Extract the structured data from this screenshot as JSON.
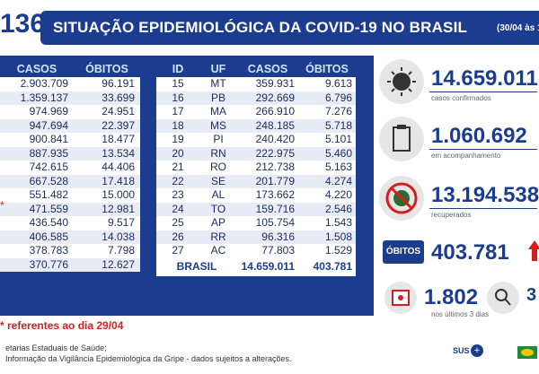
{
  "header": {
    "logo_number": "136",
    "title": "SITUAÇÃO EPIDEMIOLÓGICA DA COVID-19 NO BRASIL",
    "date": "(30/04 às 1"
  },
  "table_left": {
    "headers": {
      "casos": "CASOS",
      "obitos": "ÓBITOS"
    },
    "rows": [
      {
        "casos": "2.903.709",
        "obitos": "96.191"
      },
      {
        "casos": "1.359.137",
        "obitos": "33.699"
      },
      {
        "casos": "974.969",
        "obitos": "24.951"
      },
      {
        "casos": "947.694",
        "obitos": "22.397"
      },
      {
        "casos": "900.841",
        "obitos": "18.477"
      },
      {
        "casos": "887.935",
        "obitos": "13.534"
      },
      {
        "casos": "742.615",
        "obitos": "44.406"
      },
      {
        "casos": "667.528",
        "obitos": "17.418"
      },
      {
        "casos": "551.482",
        "obitos": "15.000"
      },
      {
        "casos": "471.559",
        "obitos": "12.981"
      },
      {
        "casos": "436.540",
        "obitos": "9.517"
      },
      {
        "casos": "406.585",
        "obitos": "14.038"
      },
      {
        "casos": "378.783",
        "obitos": "7.798"
      },
      {
        "casos": "370.776",
        "obitos": "12.627"
      }
    ]
  },
  "table_right": {
    "headers": {
      "id": "ID",
      "uf": "UF",
      "casos": "CASOS",
      "obitos": "ÓBITOS"
    },
    "rows": [
      {
        "id": "15",
        "uf": "MT",
        "casos": "359.931",
        "obitos": "9.613"
      },
      {
        "id": "16",
        "uf": "PB",
        "casos": "292.669",
        "obitos": "6.796"
      },
      {
        "id": "17",
        "uf": "MA",
        "casos": "266.910",
        "obitos": "7.276"
      },
      {
        "id": "18",
        "uf": "MS",
        "casos": "248.185",
        "obitos": "5.718"
      },
      {
        "id": "19",
        "uf": "PI",
        "casos": "240.420",
        "obitos": "5.101"
      },
      {
        "id": "20",
        "uf": "RN",
        "casos": "222.975",
        "obitos": "5.460"
      },
      {
        "id": "21",
        "uf": "RO",
        "casos": "212.738",
        "obitos": "5.163"
      },
      {
        "id": "22",
        "uf": "SE",
        "casos": "201.779",
        "obitos": "4.274"
      },
      {
        "id": "23",
        "uf": "AL",
        "casos": "173.662",
        "obitos": "4.220"
      },
      {
        "id": "24",
        "uf": "TO",
        "casos": "159.716",
        "obitos": "2.546"
      },
      {
        "id": "25",
        "uf": "AP",
        "casos": "105.754",
        "obitos": "1.543"
      },
      {
        "id": "26",
        "uf": "RR",
        "casos": "96.316",
        "obitos": "1.508"
      },
      {
        "id": "27",
        "uf": "AC",
        "casos": "77.803",
        "obitos": "1.529"
      }
    ],
    "total": {
      "label": "BRASIL",
      "casos": "14.659.011",
      "obitos": "403.781"
    }
  },
  "stats": {
    "confirmed": {
      "value": "14.659.011",
      "label": "casos confirmados"
    },
    "monitoring": {
      "value": "1.060.692",
      "label": "em acompanhamento"
    },
    "recovered": {
      "value": "13.194.538",
      "label": "recuperados"
    },
    "deaths": {
      "box": "ÓBITOS",
      "value": "403.781"
    },
    "last_days": {
      "value": "1.802",
      "label": "nos últimos 3 dias",
      "extra": "3"
    }
  },
  "footer": {
    "note": "* referentes ao dia 29/04",
    "source1": "etarias Estaduais de Saúde;",
    "source2": "Informação da Vigilância Epidemiológica da Gripe - dados sujeitos a alterações.",
    "logo_sus": "SUS"
  },
  "colors": {
    "navy": "#1b3c8f",
    "red": "#d61e1e"
  }
}
